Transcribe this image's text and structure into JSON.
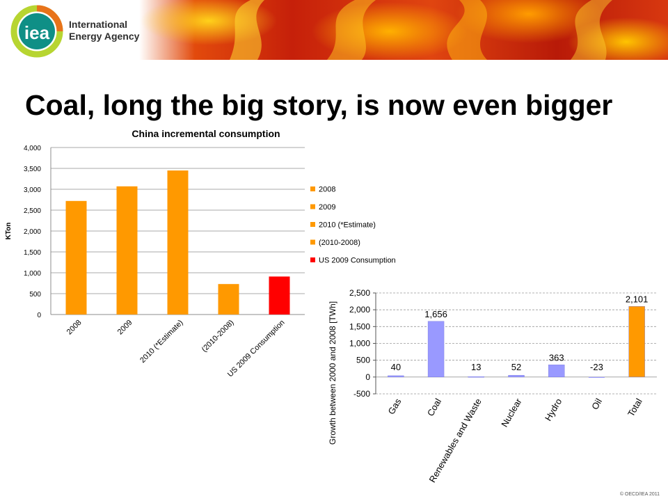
{
  "logo": {
    "mark_text": "iea",
    "name_line1": "International",
    "name_line2": "Energy Agency"
  },
  "slide": {
    "title": "Coal, long the big story, is now even bigger",
    "footer": "© OECD/IEA 2011"
  },
  "chart_data": [
    {
      "type": "bar",
      "title": "China incremental consumption",
      "ylabel": "KTon",
      "xlabel": "",
      "categories": [
        "2008",
        "2009",
        "2010 (*Estimate)",
        "(2010-2008)",
        "US 2009 Consumption"
      ],
      "values": [
        2720,
        3070,
        3450,
        730,
        910
      ],
      "colors": [
        "#ff9900",
        "#ff9900",
        "#ff9900",
        "#ff9900",
        "#ff0000"
      ],
      "ylim": [
        0,
        4000
      ],
      "yticks": [
        "0",
        "500",
        "1,000",
        "1,500",
        "2,000",
        "2,500",
        "3,000",
        "3,500",
        "4,000"
      ],
      "legend": {
        "placement": "right",
        "entries": [
          {
            "label": "2008",
            "color": "#ff9900"
          },
          {
            "label": "2009",
            "color": "#ff9900"
          },
          {
            "label": "2010 (*Estimate)",
            "color": "#ff9900"
          },
          {
            "label": "(2010-2008)",
            "color": "#ff9900"
          },
          {
            "label": "US 2009 Consumption",
            "color": "#ff0000"
          }
        ]
      },
      "grid": true
    },
    {
      "type": "bar",
      "title": "",
      "ylabel": "Growth between 2000 and 2008 [TWh]",
      "xlabel": "",
      "categories": [
        "Gas",
        "Coal",
        "Renewables and Waste",
        "Nuclear",
        "Hydro",
        "Oil",
        "Total"
      ],
      "values": [
        40,
        1656,
        13,
        52,
        363,
        -23,
        2101
      ],
      "data_labels": [
        "40",
        "1,656",
        "13",
        "52",
        "363",
        "-23",
        "2,101"
      ],
      "colors": [
        "#9999ff",
        "#9999ff",
        "#9999ff",
        "#9999ff",
        "#9999ff",
        "#9999ff",
        "#ff9900"
      ],
      "ylim": [
        -500,
        2500
      ],
      "yticks": [
        "-500",
        "0",
        "500",
        "1,000",
        "1,500",
        "2,000",
        "2,500"
      ],
      "grid": true
    }
  ]
}
